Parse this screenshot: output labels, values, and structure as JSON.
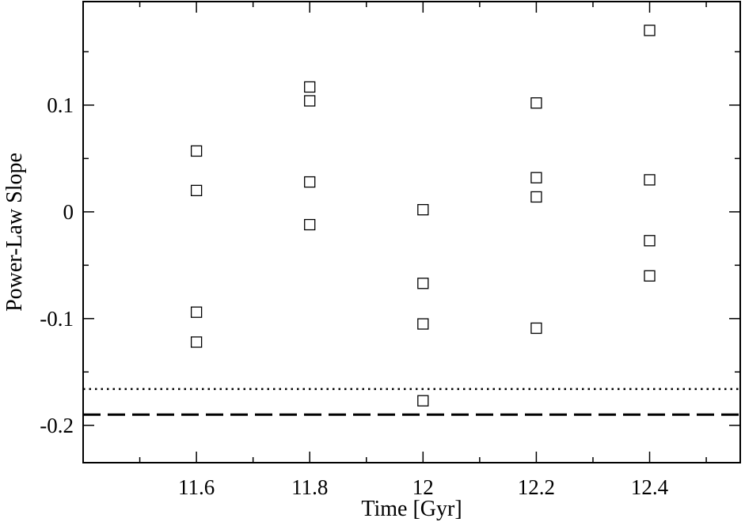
{
  "chart_data": {
    "type": "scatter",
    "xlabel": "Time [Gyr]",
    "ylabel": "Power-Law Slope",
    "xlim": [
      11.4,
      12.56
    ],
    "ylim": [
      -0.235,
      0.197
    ],
    "x_ticks": [
      {
        "value": 11.6,
        "label": "11.6"
      },
      {
        "value": 11.8,
        "label": "11.8"
      },
      {
        "value": 12.0,
        "label": "12"
      },
      {
        "value": 12.2,
        "label": "12.2"
      },
      {
        "value": 12.4,
        "label": "12.4"
      }
    ],
    "y_ticks": [
      {
        "value": -0.2,
        "label": "-0.2"
      },
      {
        "value": -0.1,
        "label": "-0.1"
      },
      {
        "value": 0.0,
        "label": "0"
      },
      {
        "value": 0.1,
        "label": "0.1"
      }
    ],
    "x_minor_step": 0.1,
    "y_minor_step": 0.05,
    "grid": false,
    "legend": "none",
    "marker": "open-square",
    "points": [
      {
        "x": 11.6,
        "y": 0.057
      },
      {
        "x": 11.6,
        "y": 0.02
      },
      {
        "x": 11.6,
        "y": -0.094
      },
      {
        "x": 11.6,
        "y": -0.122
      },
      {
        "x": 11.8,
        "y": 0.117
      },
      {
        "x": 11.8,
        "y": 0.104
      },
      {
        "x": 11.8,
        "y": 0.028
      },
      {
        "x": 11.8,
        "y": -0.012
      },
      {
        "x": 12.0,
        "y": 0.002
      },
      {
        "x": 12.0,
        "y": -0.067
      },
      {
        "x": 12.0,
        "y": -0.105
      },
      {
        "x": 12.0,
        "y": -0.177
      },
      {
        "x": 12.2,
        "y": 0.102
      },
      {
        "x": 12.2,
        "y": 0.032
      },
      {
        "x": 12.2,
        "y": 0.014
      },
      {
        "x": 12.2,
        "y": -0.109
      },
      {
        "x": 12.4,
        "y": 0.17
      },
      {
        "x": 12.4,
        "y": 0.03
      },
      {
        "x": 12.4,
        "y": -0.027
      },
      {
        "x": 12.4,
        "y": -0.06
      }
    ],
    "reference_lines": [
      {
        "style": "dotted",
        "y": -0.166
      },
      {
        "style": "dashed",
        "y": -0.19
      }
    ]
  }
}
